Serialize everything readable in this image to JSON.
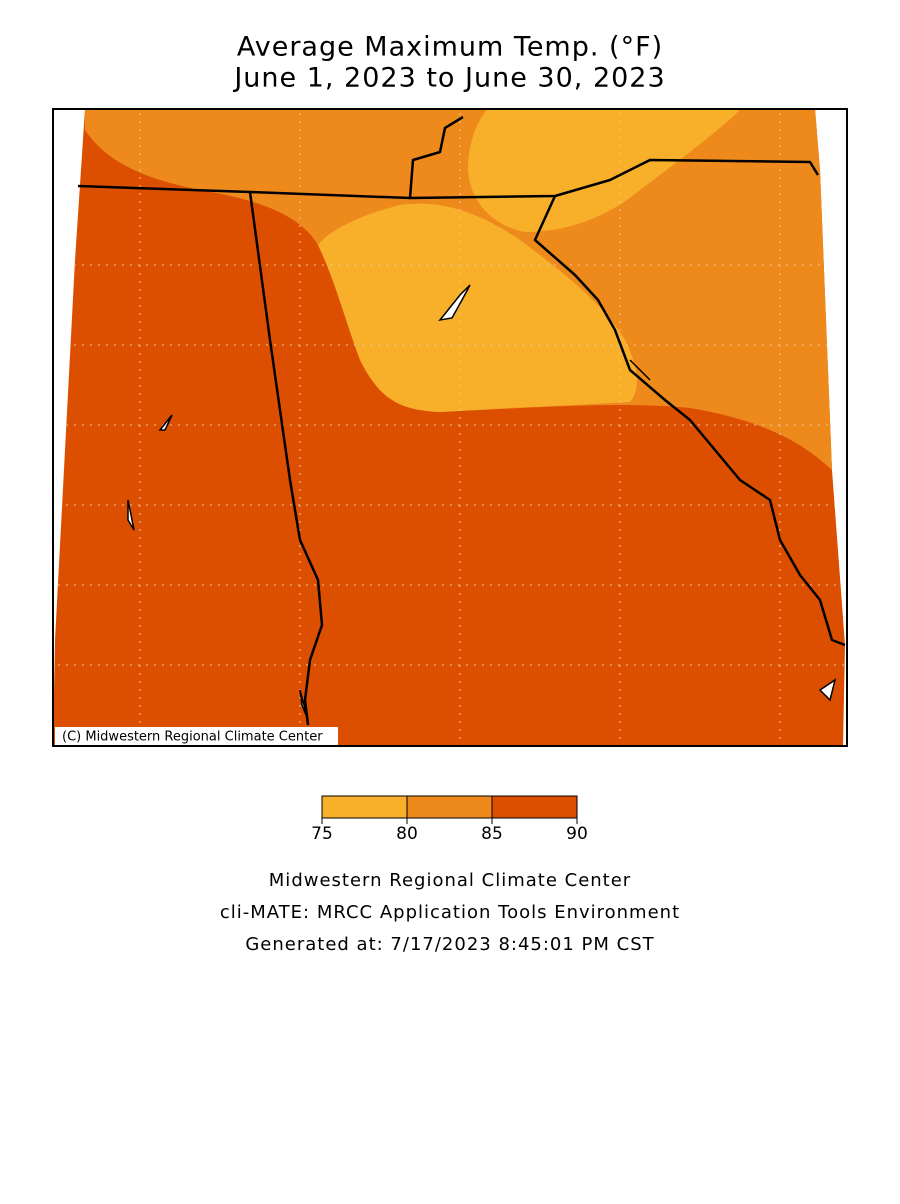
{
  "title": {
    "line1": "Average Maximum Temp. (°F)",
    "line2": "June 1, 2023 to June 30, 2023"
  },
  "map": {
    "copyright": "(C) Midwestern Regional Climate Center"
  },
  "legend": {
    "ticks": [
      75,
      80,
      85,
      90
    ],
    "colors": [
      "#f8b02a",
      "#ee8a1c",
      "#dc4f00"
    ]
  },
  "footer": {
    "line1": "Midwestern Regional Climate Center",
    "line2": "cli-MATE: MRCC Application Tools Environment",
    "line3": "Generated at: 7/17/2023 8:45:01 PM CST"
  }
}
